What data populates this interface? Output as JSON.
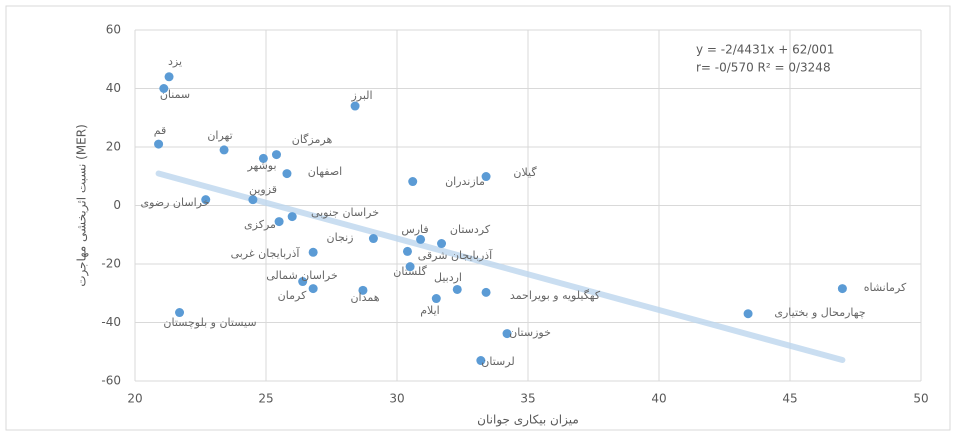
{
  "chart_data": {
    "type": "scatter",
    "x_label": "میزان بیکاری جوانان",
    "y_label": "نسبت اثربخشی مهاجرت (MER)",
    "annotations": [
      "y = -2/4431x + 62/001",
      "r= -0/570  R² = 0/3248"
    ],
    "trendline": {
      "slope": -2.4431,
      "intercept": 62.001,
      "color": "#bdd7ee"
    },
    "color": "#5b9bd5",
    "grid": true,
    "xlim": [
      20,
      50
    ],
    "xticks": [
      20,
      25,
      30,
      35,
      40,
      45,
      50
    ],
    "ylim": [
      -60,
      60
    ],
    "yticks": [
      -60,
      -40,
      -20,
      0,
      20,
      40,
      60
    ],
    "labels": [
      "یزد",
      "سمنان",
      "البرز",
      "قم",
      "تهران",
      "هرمزگان",
      "بوشهر",
      "اصفهان",
      "مازندران",
      "گیلان",
      "قزوین",
      "خراسان رضوی",
      "خراسان جنوبی",
      "مرکزی",
      "زنجان",
      "فارس",
      "کردستان",
      "آذربایجان شرقی",
      "آذربایجان غربی",
      "گلستان",
      "خراسان شمالی",
      "کرمان",
      "همدان",
      "اردبیل",
      "کهگیلویه و بویراحمد",
      "ایلام",
      "سیستان و بلوچستان",
      "خوزستان",
      "لرستان",
      "کرمانشاه",
      "چهارمحال و بختیاری"
    ],
    "x": [
      21.3,
      21.1,
      28.4,
      20.9,
      23.4,
      25.4,
      24.9,
      25.8,
      30.6,
      33.4,
      24.5,
      22.7,
      26,
      25.5,
      29.1,
      30.9,
      31.7,
      30.4,
      26.8,
      30.5,
      26.4,
      26.8,
      28.7,
      32.3,
      33.4,
      31.5,
      21.7,
      34.2,
      33.2,
      47,
      43.4
    ],
    "values": [
      44,
      40,
      34,
      21,
      19,
      17.4,
      16.1,
      10.9,
      8.2,
      9.9,
      2,
      2,
      -3.8,
      -5.5,
      -11.3,
      -11.6,
      -13,
      -15.7,
      -16,
      -20.9,
      -26,
      -28.4,
      -29,
      -28.7,
      -29.7,
      -31.8,
      -36.6,
      -43.8,
      -53,
      -28.4,
      -37
    ]
  }
}
